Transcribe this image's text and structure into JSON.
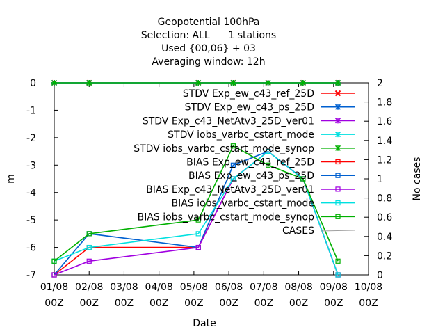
{
  "chart_data": {
    "type": "line",
    "title": [
      "Geopotential 100hPa",
      "Selection: ALL      1 stations",
      "Used {00,06} + 03",
      "Averaging window: 12h"
    ],
    "xlabel": "Date",
    "ylabel": "m",
    "y2label": "No cases",
    "x_ticks": [
      {
        "day": 0,
        "line1": "01/08",
        "line2": "00Z"
      },
      {
        "day": 1,
        "line1": "02/08",
        "line2": "00Z"
      },
      {
        "day": 2,
        "line1": "03/08",
        "line2": "00Z"
      },
      {
        "day": 3,
        "line1": "04/08",
        "line2": "00Z"
      },
      {
        "day": 4,
        "line1": "05/08",
        "line2": "00Z"
      },
      {
        "day": 5,
        "line1": "06/08",
        "line2": "00Z"
      },
      {
        "day": 6,
        "line1": "07/08",
        "line2": "00Z"
      },
      {
        "day": 7,
        "line1": "08/08",
        "line2": "00Z"
      },
      {
        "day": 8,
        "line1": "09/08",
        "line2": "00Z"
      },
      {
        "day": 9,
        "line1": "10/08",
        "line2": "00Z"
      }
    ],
    "xlim": [
      0,
      9
    ],
    "ylim": [
      -7,
      0
    ],
    "y_ticks": [
      "0",
      "-1",
      "-2",
      "-3",
      "-4",
      "-5",
      "-6",
      "-7"
    ],
    "y2lim": [
      0,
      2
    ],
    "y2_ticks": [
      "2",
      "1.8",
      "1.6",
      "1.4",
      "1.2",
      "1",
      "0.8",
      "0.6",
      "0.4",
      "0.2",
      "0"
    ],
    "legend_position": "right, inside",
    "series": [
      {
        "name": "STDV Exp_ew_c43_ref_25D",
        "color": "#ff0000",
        "marker": "x",
        "x": [
          0,
          1,
          4.125,
          5.125,
          6.125,
          7.125,
          8.125
        ],
        "y": [
          0,
          0,
          0,
          0,
          0,
          0,
          0
        ]
      },
      {
        "name": "STDV Exp_ew_c43_ps_25D",
        "color": "#0060d0",
        "marker": "star",
        "x": [
          0,
          1,
          4.125,
          5.125,
          6.125,
          7.125,
          8.125
        ],
        "y": [
          0,
          0,
          0,
          0,
          0,
          0,
          0
        ]
      },
      {
        "name": "STDV Exp_c43_NetAtv3_25D_ver01",
        "color": "#a000e0",
        "marker": "star",
        "x": [
          0,
          1,
          4.125,
          5.125,
          6.125,
          7.125,
          8.125
        ],
        "y": [
          0,
          0,
          0,
          0,
          0,
          0,
          0
        ]
      },
      {
        "name": "STDV iobs_varbc_cstart_mode",
        "color": "#00e0e0",
        "marker": "star",
        "x": [
          0,
          1,
          4.125,
          5.125,
          6.125,
          7.125,
          8.125
        ],
        "y": [
          0,
          0,
          0,
          0,
          0,
          0,
          0
        ]
      },
      {
        "name": "STDV iobs_varbc_cstart_mode_synop",
        "color": "#00b000",
        "marker": "star",
        "x": [
          0,
          1,
          4.125,
          5.125,
          6.125,
          7.125,
          8.125
        ],
        "y": [
          0,
          0,
          0,
          0,
          0,
          0,
          0
        ]
      },
      {
        "name": "BIAS Exp_ew_c43_ref_25D",
        "color": "#ff0000",
        "marker": "square",
        "x": [
          0,
          1,
          4.125,
          5.125,
          6.125,
          7.125,
          8.125
        ],
        "y": [
          -7,
          -6,
          -6,
          -3.5,
          -2.5,
          -3.5,
          -7
        ]
      },
      {
        "name": "BIAS Exp_ew_c43_ps_25D",
        "color": "#0060d0",
        "marker": "square",
        "x": [
          0,
          1,
          4.125,
          5.125,
          6.125,
          7.125,
          8.125
        ],
        "y": [
          -7,
          -5.5,
          -6,
          -3,
          -2.5,
          -3.5,
          -7
        ]
      },
      {
        "name": "BIAS Exp_c43_NetAtv3_25D_ver01",
        "color": "#a000e0",
        "marker": "square",
        "x": [
          0,
          1,
          4.125,
          5.125,
          6.125,
          7.125,
          8.125
        ],
        "y": [
          -7,
          -6.5,
          -6,
          -3.5,
          -2.5,
          -3.5,
          -7
        ]
      },
      {
        "name": "BIAS iobs_varbc_cstart_mode",
        "color": "#00e0e0",
        "marker": "square",
        "x": [
          0,
          1,
          4.125,
          5.125,
          6.125,
          7.125,
          8.125
        ],
        "y": [
          -6.5,
          -6,
          -5.5,
          -3.5,
          -2.5,
          -3.5,
          -7
        ]
      },
      {
        "name": "BIAS iobs_varbc_cstart_mode_synop",
        "color": "#00b000",
        "marker": "square",
        "x": [
          0,
          1,
          4.125,
          5.125,
          6.125,
          7.125,
          8.125
        ],
        "y": [
          -6.5,
          -5.5,
          -5,
          -2.3,
          -3,
          -3.5,
          -6.5
        ]
      },
      {
        "name": "CASES",
        "color": "#a0a0a0",
        "marker": "none",
        "axis": "y2",
        "x": [],
        "y": []
      }
    ]
  }
}
